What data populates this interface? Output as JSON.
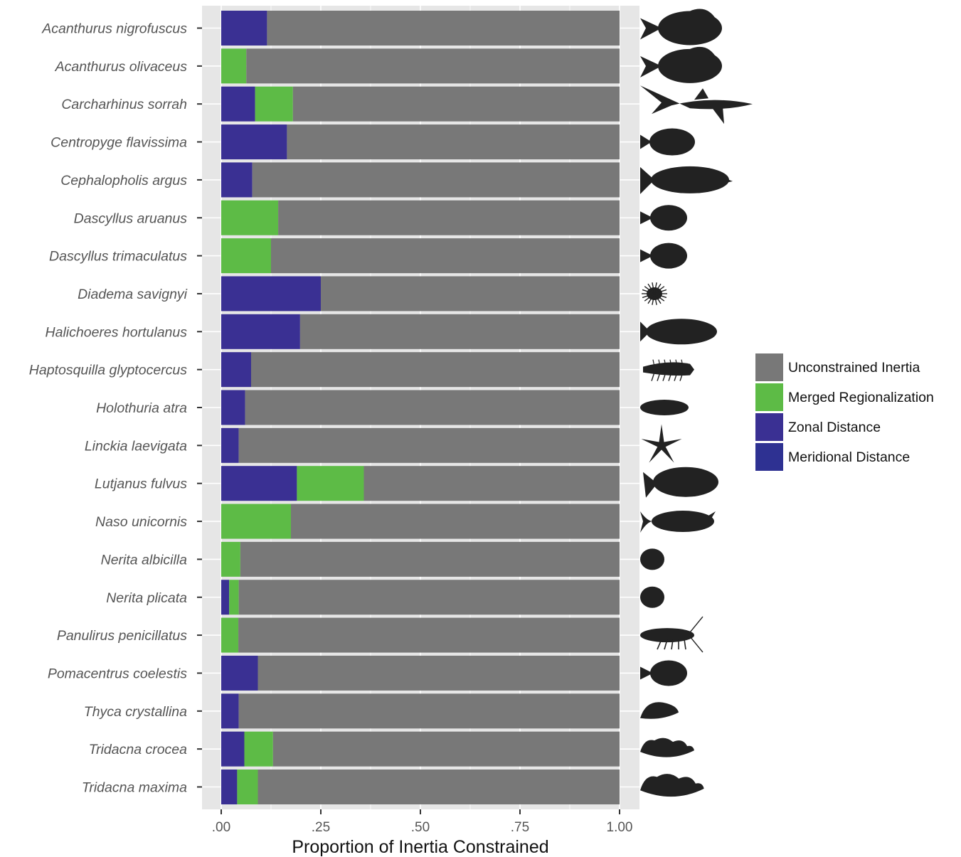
{
  "chart_data": {
    "type": "bar",
    "orientation": "horizontal",
    "stacked": true,
    "xlabel": "Proportion of Inertia Constrained",
    "ylabel": "",
    "xlim": [
      0,
      1
    ],
    "xticks": [
      {
        "value": 0,
        "label": ".00"
      },
      {
        "value": 0.25,
        "label": ".25"
      },
      {
        "value": 0.5,
        "label": ".50"
      },
      {
        "value": 0.75,
        "label": ".75"
      },
      {
        "value": 1,
        "label": "1.00"
      }
    ],
    "grid": true,
    "legend_position": "right",
    "categories": [
      "Acanthurus nigrofuscus",
      "Acanthurus olivaceus",
      "Carcharhinus sorrah",
      "Centropyge flavissima",
      "Cephalopholis argus",
      "Dascyllus aruanus",
      "Dascyllus trimaculatus",
      "Diadema savignyi",
      "Halichoeres hortulanus",
      "Haptosquilla glyptocercus",
      "Holothuria atra",
      "Linckia laevigata",
      "Lutjanus fulvus",
      "Naso unicornis",
      "Nerita albicilla",
      "Nerita plicata",
      "Panulirus penicillatus",
      "Pomacentrus coelestis",
      "Thyca crystallina",
      "Tridacna crocea",
      "Tridacna maxima"
    ],
    "silhouette_icons": [
      "surgeonfish-icon",
      "surgeonfish-icon",
      "shark-icon",
      "angelfish-icon",
      "grouper-icon",
      "damselfish-icon",
      "damselfish-icon",
      "sea-urchin-icon",
      "wrasse-icon",
      "mantis-shrimp-icon",
      "sea-cucumber-icon",
      "starfish-icon",
      "snapper-icon",
      "unicornfish-icon",
      "snail-icon",
      "snail-icon",
      "lobster-icon",
      "damselfish-icon",
      "limpet-icon",
      "clam-icon",
      "clam-icon"
    ],
    "series": [
      {
        "name": "Meridional Distance",
        "color": "#2e3192",
        "values": [
          0,
          0,
          0,
          0,
          0,
          0,
          0,
          0,
          0,
          0,
          0,
          0,
          0,
          0,
          0,
          0,
          0,
          0,
          0,
          0,
          0
        ]
      },
      {
        "name": "Zonal Distance",
        "color": "#3a3093",
        "values": [
          0.115,
          0,
          0.085,
          0.165,
          0.078,
          0,
          0,
          0.25,
          0.198,
          0.075,
          0.06,
          0.044,
          0.19,
          0,
          0,
          0.02,
          0,
          0.092,
          0.044,
          0.058,
          0.04
        ]
      },
      {
        "name": "Merged Regionalization",
        "color": "#5dbb46",
        "values": [
          0,
          0.063,
          0.095,
          0,
          0,
          0.143,
          0.125,
          0,
          0,
          0,
          0,
          0,
          0.168,
          0.175,
          0.048,
          0.024,
          0.043,
          0,
          0,
          0.072,
          0.052
        ]
      },
      {
        "name": "Unconstrained Inertia",
        "color": "#787878",
        "values": [
          0.885,
          0.937,
          0.82,
          0.835,
          0.922,
          0.857,
          0.875,
          0.75,
          0.802,
          0.925,
          0.94,
          0.956,
          0.642,
          0.825,
          0.952,
          0.956,
          0.957,
          0.908,
          0.956,
          0.87,
          0.908
        ]
      }
    ],
    "legend_order": [
      "Unconstrained Inertia",
      "Merged Regionalization",
      "Zonal Distance",
      "Meridional Distance"
    ]
  }
}
